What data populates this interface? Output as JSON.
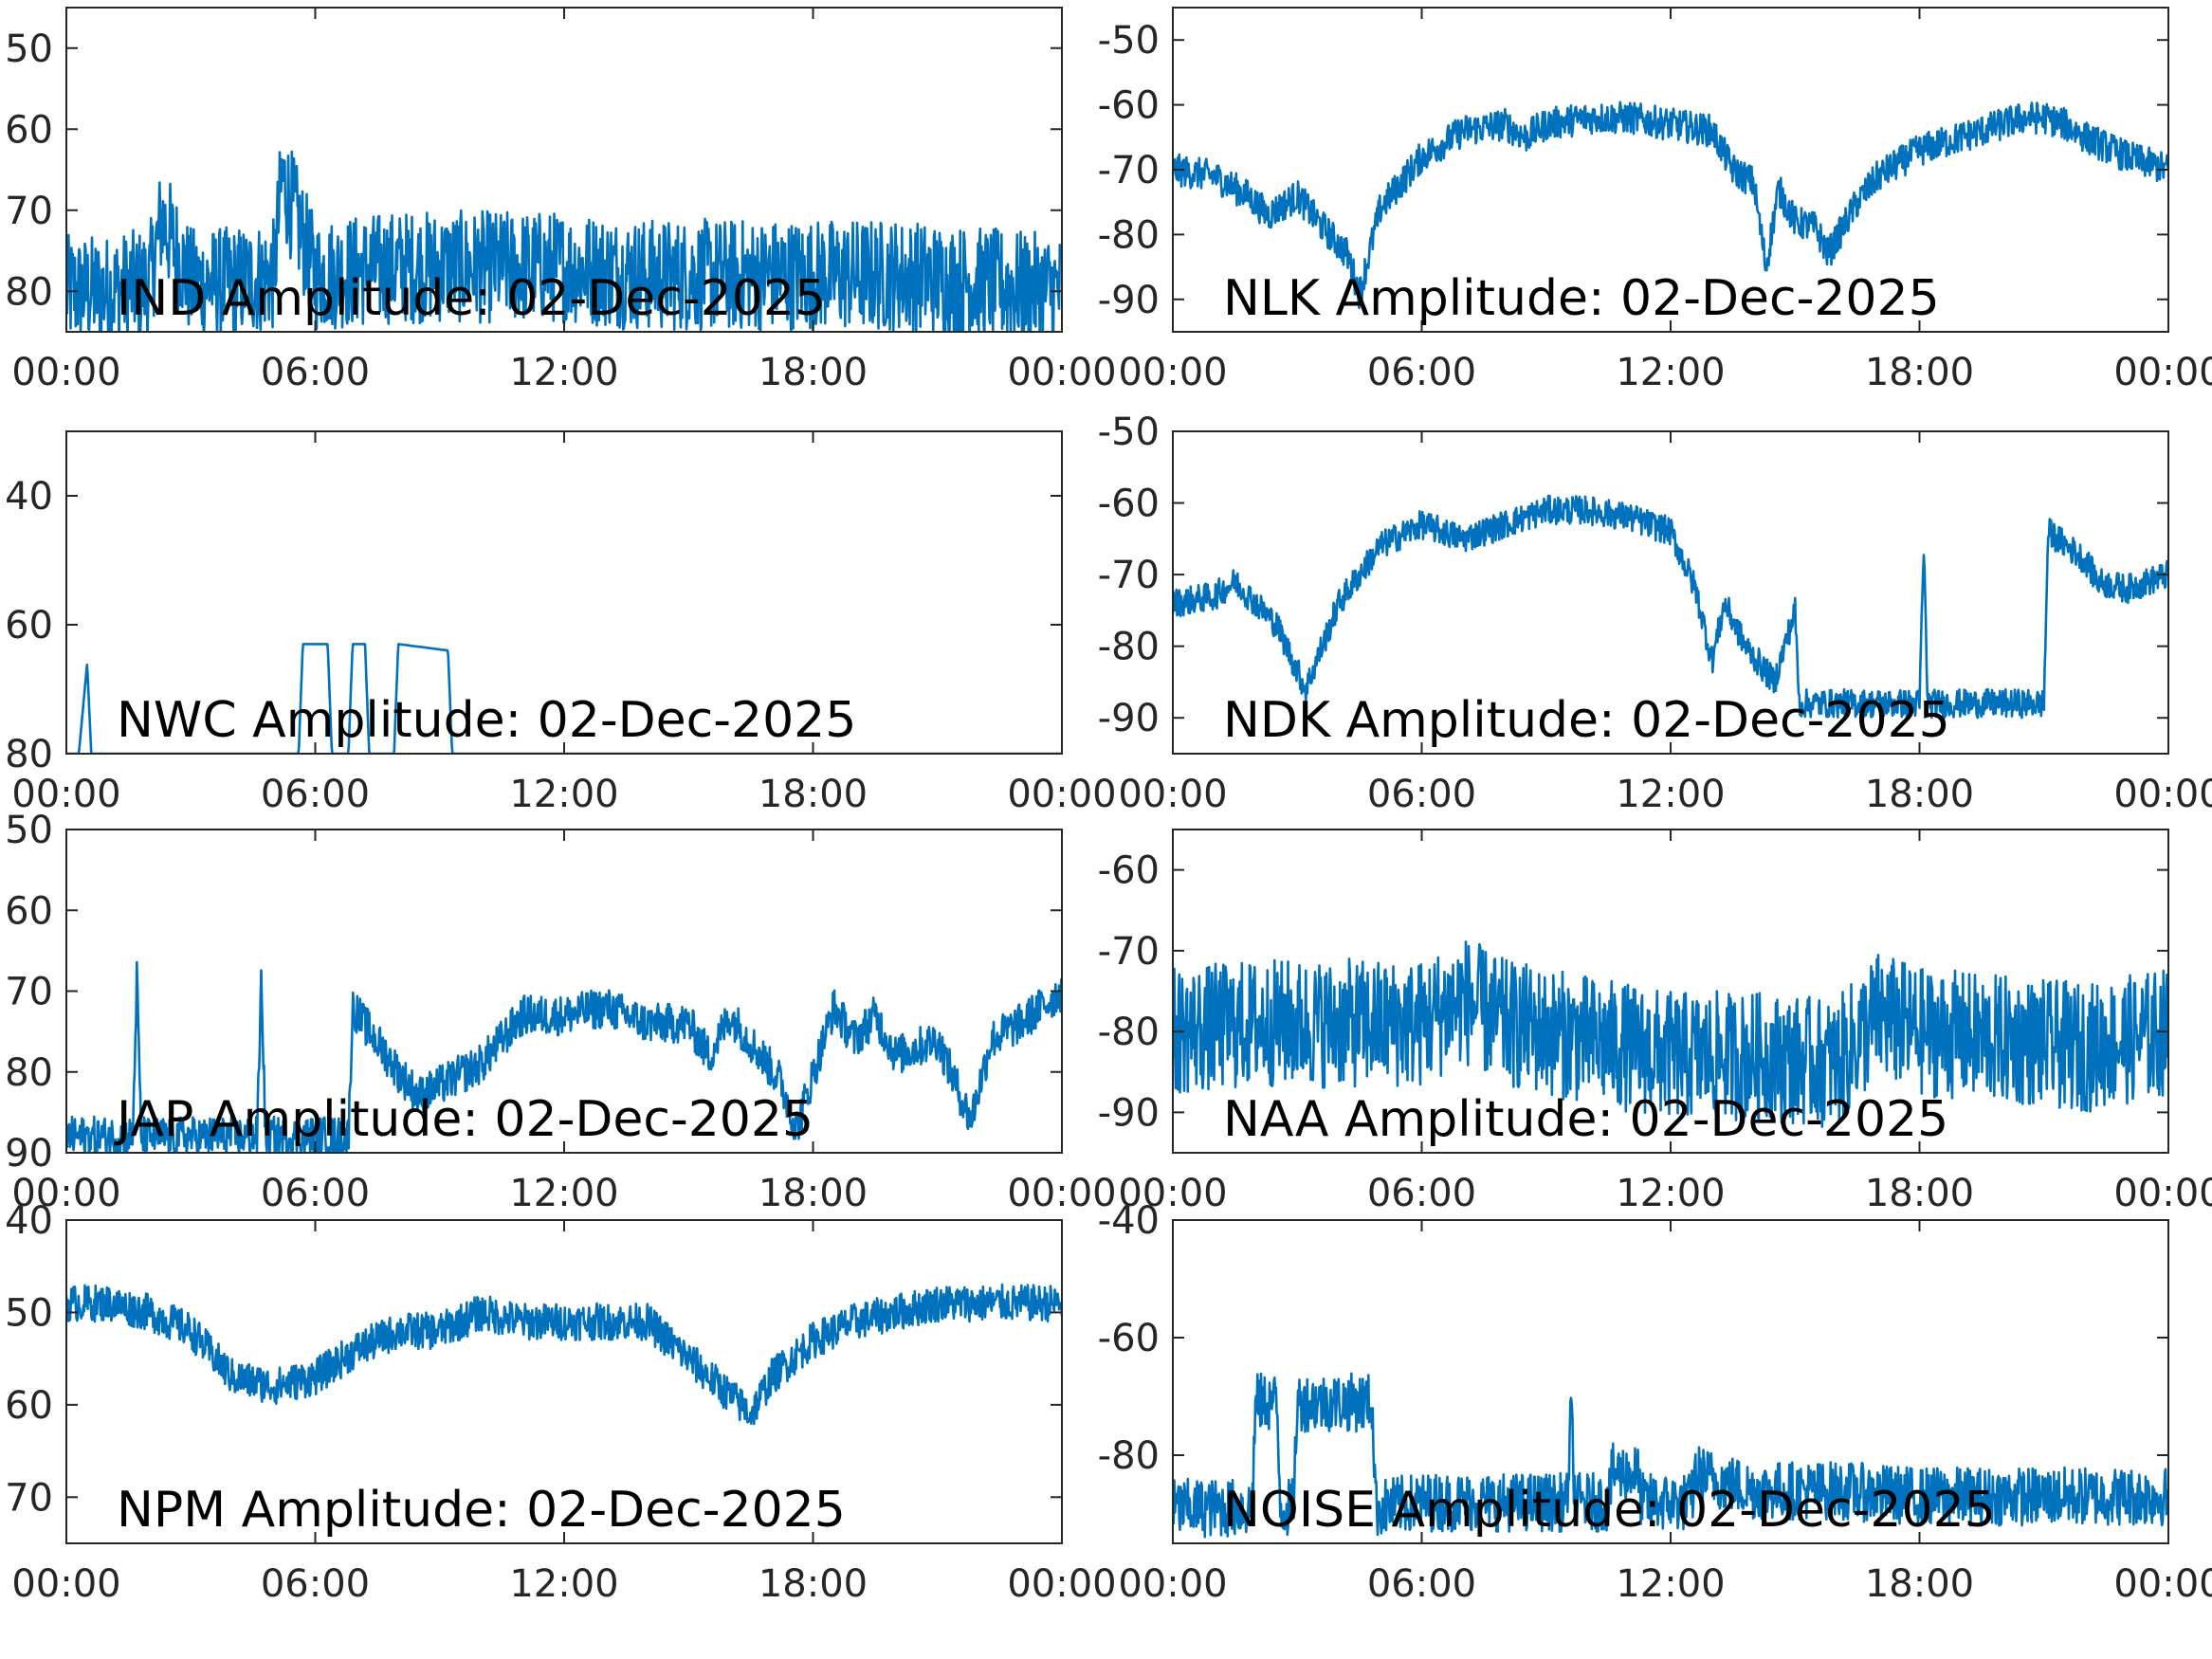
{
  "figure": {
    "series_color": "#0072BD",
    "x_tick_labels": [
      "00:00",
      "06:00",
      "12:00",
      "18:00",
      "00:00"
    ]
  },
  "chart_data": [
    {
      "type": "line",
      "title": "IND Amplitude: 02-Dec-2025",
      "x_range_hours": [
        0,
        24
      ],
      "ylim": [
        -85,
        -45
      ],
      "y_ticks": [
        -50,
        -60,
        -70,
        -80
      ],
      "y_tick_labels": [
        "50",
        "60",
        "70",
        "80"
      ],
      "grid": false,
      "series": [
        {
          "x": [
            0,
            1,
            2,
            2.3,
            3,
            4,
            5,
            5.2,
            6,
            8,
            10,
            12,
            14,
            16,
            18,
            20,
            22,
            24
          ],
          "values": [
            -80,
            -80,
            -79,
            -71,
            -79,
            -79,
            -78,
            -66,
            -78,
            -77,
            -77,
            -77,
            -78,
            -78,
            -78,
            -78,
            -79,
            -80
          ],
          "band": 7
        }
      ]
    },
    {
      "type": "line",
      "title": "NLK Amplitude: 02-Dec-2025",
      "x_range_hours": [
        0,
        24
      ],
      "ylim": [
        -95,
        -45
      ],
      "y_ticks": [
        -50,
        -60,
        -70,
        -80,
        -90
      ],
      "y_tick_labels": [
        "-50",
        "-60",
        "-70",
        "-80",
        "-90"
      ],
      "grid": false,
      "series": [
        {
          "x": [
            0,
            1,
            1.8,
            2.3,
            3,
            3.5,
            4.2,
            4.5,
            5,
            6,
            7,
            8,
            8.5,
            9,
            10,
            11,
            12,
            13,
            13.5,
            14,
            14.3,
            14.6,
            15,
            15.5,
            15.8,
            16.5,
            17,
            18,
            19,
            20,
            20.5,
            21,
            21.5,
            22,
            23,
            24
          ],
          "values": [
            -70,
            -71,
            -74,
            -77,
            -74,
            -78,
            -83,
            -89,
            -76,
            -68,
            -64,
            -63,
            -65,
            -63,
            -62,
            -62,
            -63,
            -64,
            -70,
            -72,
            -85,
            -73,
            -78,
            -79,
            -83,
            -75,
            -71,
            -67,
            -65,
            -63,
            -62,
            -62,
            -63,
            -65,
            -68,
            -70
          ],
          "band": 2.5
        }
      ]
    },
    {
      "type": "line",
      "title": "NWC Amplitude: 02-Dec-2025",
      "x_range_hours": [
        0,
        24
      ],
      "ylim": [
        -80,
        -30
      ],
      "y_ticks": [
        -40,
        -60,
        -80
      ],
      "y_tick_labels": [
        "40",
        "60",
        "80"
      ],
      "grid": false,
      "series": [
        {
          "x": [
            0,
            0.3,
            0.5,
            0.6,
            1,
            5.6,
            5.7,
            6.3,
            6.4,
            6.8,
            6.9,
            7.2,
            7.3,
            7.9,
            8.0,
            9.2,
            9.3,
            12,
            18,
            24
          ],
          "values": [
            -80,
            -80,
            -66,
            -80,
            -80,
            -80,
            -63,
            -63,
            -80,
            -80,
            -63,
            -63,
            -80,
            -80,
            -63,
            -64,
            -80,
            -80,
            -80,
            -80
          ],
          "band": 0
        }
      ]
    },
    {
      "type": "line",
      "title": "NDK Amplitude: 02-Dec-2025",
      "x_range_hours": [
        0,
        24
      ],
      "ylim": [
        -95,
        -50
      ],
      "y_ticks": [
        -50,
        -60,
        -70,
        -80,
        -90
      ],
      "y_tick_labels": [
        "-50",
        "-60",
        "-70",
        "-80",
        "-90"
      ],
      "grid": false,
      "series": [
        {
          "x": [
            0,
            1,
            1.5,
            2.5,
            3.2,
            4,
            5,
            6,
            7,
            8,
            9,
            10,
            11,
            12,
            12.6,
            13,
            13.3,
            13.8,
            14.5,
            15,
            15.1,
            18,
            18.1,
            18.2,
            18.3,
            21,
            21.1,
            22,
            22.3,
            23,
            24
          ],
          "values": [
            -74,
            -73,
            -71,
            -77,
            -86,
            -74,
            -66,
            -63,
            -65,
            -63,
            -61,
            -61,
            -62,
            -64,
            -72,
            -82,
            -74,
            -80,
            -85,
            -75,
            -88,
            -88,
            -66,
            -88,
            -88,
            -88,
            -64,
            -68,
            -71,
            -72,
            -70
          ],
          "band": 2
        }
      ]
    },
    {
      "type": "line",
      "title": "JAP Amplitude: 02-Dec-2025",
      "x_range_hours": [
        0,
        24
      ],
      "ylim": [
        -90,
        -50
      ],
      "y_ticks": [
        -50,
        -60,
        -70,
        -80,
        -90
      ],
      "y_tick_labels": [
        "50",
        "60",
        "70",
        "80",
        "90"
      ],
      "grid": false,
      "series": [
        {
          "x": [
            0,
            1.6,
            1.7,
            1.8,
            4.6,
            4.7,
            4.8,
            6.8,
            6.9,
            8,
            8.5,
            10,
            11,
            12,
            13,
            14,
            15,
            15.5,
            16,
            17.2,
            17.6,
            18.5,
            19,
            19.5,
            20,
            21,
            21.8,
            22.3,
            23,
            24
          ],
          "values": [
            -88,
            -88,
            -68,
            -88,
            -88,
            -68,
            -88,
            -88,
            -72,
            -80,
            -83,
            -79,
            -73,
            -73,
            -72,
            -74,
            -74,
            -78,
            -73,
            -81,
            -87,
            -72,
            -76,
            -73,
            -78,
            -76,
            -86,
            -76,
            -74,
            -70
          ],
          "band": 2.5
        }
      ]
    },
    {
      "type": "line",
      "title": "NAA Amplitude: 02-Dec-2025",
      "x_range_hours": [
        0,
        24
      ],
      "ylim": [
        -95,
        -55
      ],
      "y_ticks": [
        -60,
        -70,
        -80,
        -90
      ],
      "y_tick_labels": [
        "-60",
        "-70",
        "-80",
        "-90"
      ],
      "grid": false,
      "series": [
        {
          "x": [
            0,
            2,
            4,
            6,
            7,
            8,
            10,
            12,
            14,
            16,
            17,
            18,
            20,
            22,
            24
          ],
          "values": [
            -80,
            -79,
            -79,
            -79,
            -76,
            -79,
            -81,
            -83,
            -83,
            -84,
            -78,
            -80,
            -81,
            -82,
            -80
          ],
          "band": 8
        }
      ]
    },
    {
      "type": "line",
      "title": "NPM Amplitude: 02-Dec-2025",
      "x_range_hours": [
        0,
        24
      ],
      "ylim": [
        -75,
        -40
      ],
      "y_ticks": [
        -40,
        -50,
        -60,
        -70
      ],
      "y_tick_labels": [
        "40",
        "50",
        "60",
        "70"
      ],
      "grid": false,
      "series": [
        {
          "x": [
            0,
            1,
            2,
            3,
            4,
            5,
            6,
            7,
            8,
            9,
            10,
            11,
            12,
            13,
            14,
            15,
            16,
            16.5,
            17,
            18,
            19,
            20,
            21,
            22,
            23,
            24
          ],
          "values": [
            -49,
            -49,
            -50,
            -52,
            -57,
            -58,
            -57,
            -54,
            -52,
            -52,
            -50,
            -51,
            -51,
            -51,
            -51,
            -55,
            -59,
            -61,
            -57,
            -53,
            -51,
            -50,
            -49,
            -49,
            -49,
            -49
          ],
          "band": 2
        }
      ]
    },
    {
      "type": "line",
      "title": "NOISE Amplitude: 02-Dec-2025",
      "x_range_hours": [
        0,
        24
      ],
      "ylim": [
        -95,
        -40
      ],
      "y_ticks": [
        -40,
        -60,
        -80
      ],
      "y_tick_labels": [
        "-40",
        "-60",
        "-80"
      ],
      "grid": false,
      "series": [
        {
          "x": [
            0,
            1.9,
            2.0,
            2.5,
            2.6,
            2.9,
            3.0,
            3.4,
            3.5,
            4.8,
            4.9,
            6,
            8,
            9.5,
            9.6,
            9.7,
            10.5,
            10.6,
            11.2,
            11.3,
            12.5,
            12.6,
            13,
            14,
            16,
            18,
            20,
            22,
            24
          ],
          "values": [
            -89,
            -89,
            -71,
            -71,
            -89,
            -89,
            -71,
            -71,
            -71,
            -71,
            -89,
            -88,
            -88,
            -88,
            -73,
            -88,
            -88,
            -83,
            -83,
            -88,
            -88,
            -83,
            -84,
            -86,
            -86,
            -87,
            -87,
            -87,
            -87
          ],
          "band": 5
        }
      ]
    }
  ]
}
